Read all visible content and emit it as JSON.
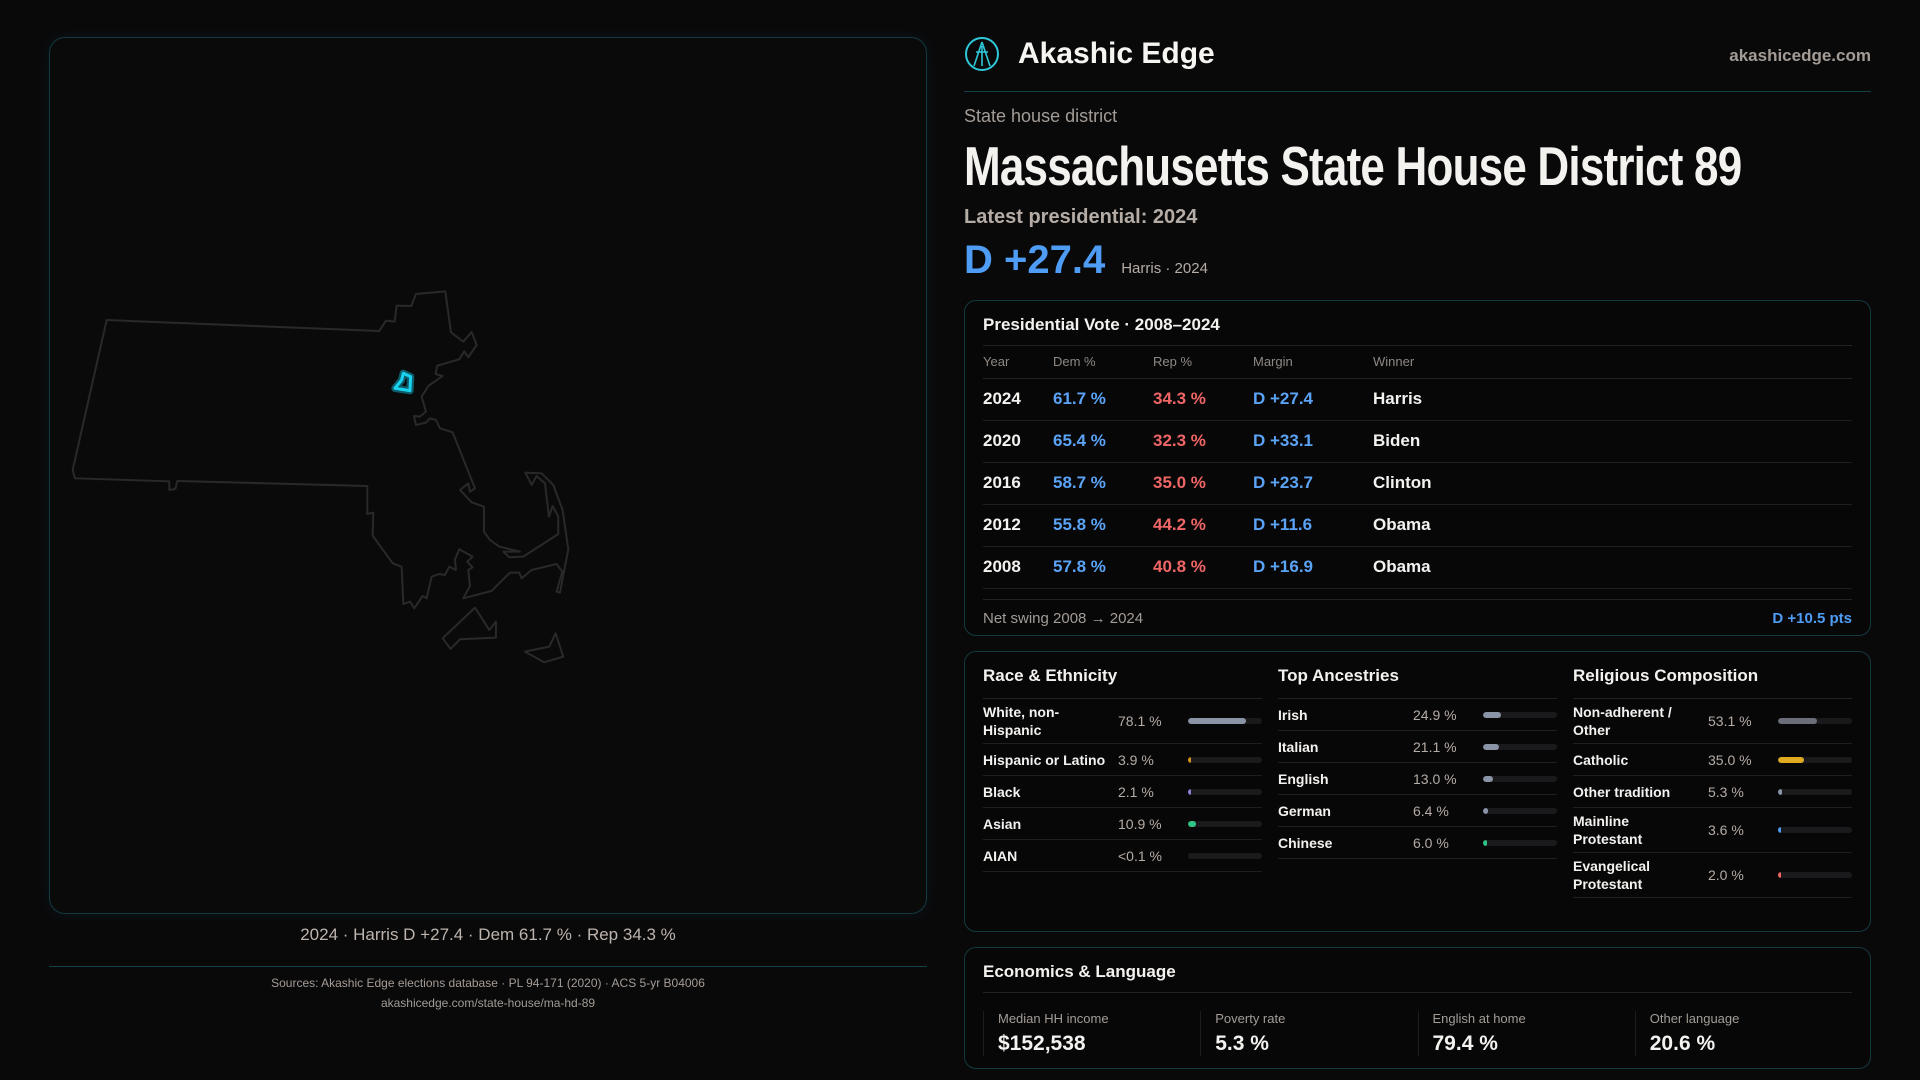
{
  "brand": {
    "name": "Akashic Edge",
    "site": "akashicedge.com",
    "logo_icon": "akashic-logo-icon"
  },
  "header": {
    "kicker": "State house district",
    "title": "Massachusetts State House District 89",
    "latest": "Latest presidential: 2024",
    "margin": "D +27.4",
    "margin_sub": "Harris · 2024"
  },
  "map": {
    "caption": "2024 · Harris D +27.4 · Dem 61.7 % · Rep 34.3 %",
    "highlight_color": "#19d3f0",
    "outline_color": "#2a2829"
  },
  "presidential": {
    "title": "Presidential Vote · 2008–2024",
    "columns": [
      "Year",
      "Dem %",
      "Rep %",
      "Margin",
      "Winner"
    ],
    "rows": [
      {
        "year": "2024",
        "dem": "61.7 %",
        "rep": "34.3 %",
        "margin": "D +27.4",
        "winner": "Harris"
      },
      {
        "year": "2020",
        "dem": "65.4 %",
        "rep": "32.3 %",
        "margin": "D +33.1",
        "winner": "Biden"
      },
      {
        "year": "2016",
        "dem": "58.7 %",
        "rep": "35.0 %",
        "margin": "D +23.7",
        "winner": "Clinton"
      },
      {
        "year": "2012",
        "dem": "55.8 %",
        "rep": "44.2 %",
        "margin": "D +11.6",
        "winner": "Obama"
      },
      {
        "year": "2008",
        "dem": "57.8 %",
        "rep": "40.8 %",
        "margin": "D +16.9",
        "winner": "Obama"
      }
    ],
    "swing_label": "Net swing 2008 → 2024",
    "swing_value": "D +10.5 pts"
  },
  "demographics": [
    {
      "title": "Race & Ethnicity",
      "items": [
        {
          "label": "White, non-Hispanic",
          "pct": "78.1 %",
          "value": 78.1,
          "color": "#8a94a6"
        },
        {
          "label": "Hispanic or Latino",
          "pct": "3.9 %",
          "value": 3.9,
          "color": "#d4941e"
        },
        {
          "label": "Black",
          "pct": "2.1 %",
          "value": 2.1,
          "color": "#8b7fd8"
        },
        {
          "label": "Asian",
          "pct": "10.9 %",
          "value": 10.9,
          "color": "#2fc488"
        },
        {
          "label": "AIAN",
          "pct": "<0.1 %",
          "value": 0.05,
          "color": "#8a94a6"
        }
      ]
    },
    {
      "title": "Top Ancestries",
      "items": [
        {
          "label": "Irish",
          "pct": "24.9 %",
          "value": 24.9,
          "color": "#8a94a6"
        },
        {
          "label": "Italian",
          "pct": "21.1 %",
          "value": 21.1,
          "color": "#8a94a6"
        },
        {
          "label": "English",
          "pct": "13.0 %",
          "value": 13.0,
          "color": "#8a94a6"
        },
        {
          "label": "German",
          "pct": "6.4 %",
          "value": 6.4,
          "color": "#8a94a6"
        },
        {
          "label": "Chinese",
          "pct": "6.0 %",
          "value": 6.0,
          "color": "#2fc488"
        }
      ]
    },
    {
      "title": "Religious Composition",
      "items": [
        {
          "label": "Non-adherent / Other",
          "pct": "53.1 %",
          "value": 53.1,
          "color": "#6b6e78"
        },
        {
          "label": "Catholic",
          "pct": "35.0 %",
          "value": 35.0,
          "color": "#e0aa22"
        },
        {
          "label": "Other tradition",
          "pct": "5.3 %",
          "value": 5.3,
          "color": "#8a94a6"
        },
        {
          "label": "Mainline Protestant",
          "pct": "3.6 %",
          "value": 3.6,
          "color": "#4f9cf5"
        },
        {
          "label": "Evangelical Protestant",
          "pct": "2.0 %",
          "value": 2.0,
          "color": "#f06666"
        }
      ]
    }
  ],
  "economics": {
    "title": "Economics & Language",
    "stats": [
      {
        "label": "Median HH income",
        "value": "$152,538"
      },
      {
        "label": "Poverty rate",
        "value": "5.3 %"
      },
      {
        "label": "English at home",
        "value": "79.4 %"
      },
      {
        "label": "Other language",
        "value": "20.6 %"
      }
    ]
  },
  "footer": {
    "sources": "Sources: Akashic Edge elections database · PL 94-171 (2020) · ACS 5-yr B04006",
    "url": "akashicedge.com/state-house/ma-hd-89"
  }
}
